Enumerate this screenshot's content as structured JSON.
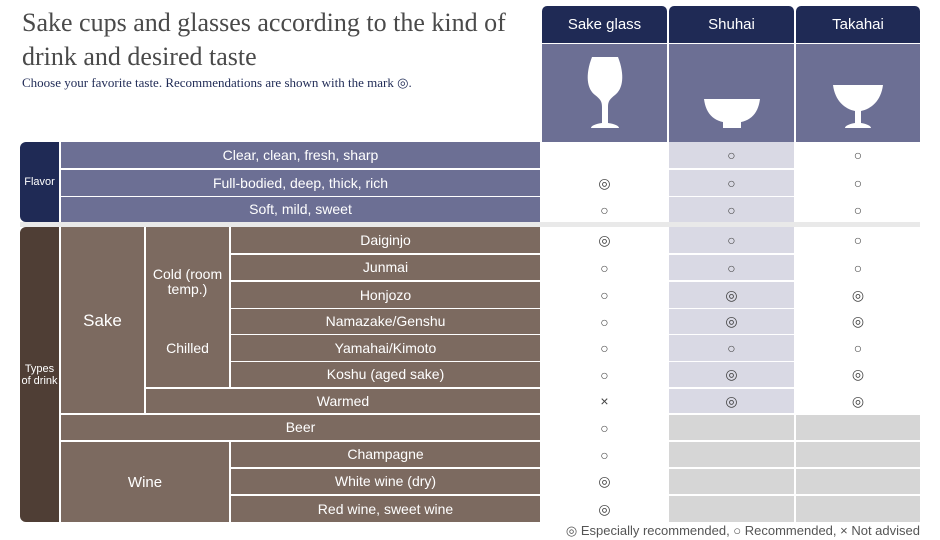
{
  "title": "Sake cups and glasses according to the kind of drink and desired taste",
  "subtitle": "Choose your favorite taste. Recommendations are shown with the mark ◎.",
  "columns": [
    {
      "label": "Sake glass",
      "icon": "sake-glass-icon"
    },
    {
      "label": "Shuhai",
      "icon": "shuhai-cup-icon"
    },
    {
      "label": "Takahai",
      "icon": "takahai-cup-icon"
    }
  ],
  "groups": {
    "flavor": "Flavor",
    "types": "Types of drink",
    "sake": "Sake",
    "cold": "Cold (room temp.)",
    "chilled": "Chilled",
    "wine": "Wine"
  },
  "rows": [
    {
      "label": "Clear, clean, fresh, sharp",
      "marks": [
        "",
        "○",
        "○"
      ]
    },
    {
      "label": "Full-bodied, deep, thick, rich",
      "marks": [
        "◎",
        "○",
        "○"
      ]
    },
    {
      "label": "Soft, mild, sweet",
      "marks": [
        "○",
        "○",
        "○"
      ]
    },
    {
      "label": "Daiginjo",
      "marks": [
        "◎",
        "○",
        "○"
      ]
    },
    {
      "label": "Junmai",
      "marks": [
        "○",
        "○",
        "○"
      ]
    },
    {
      "label": "Honjozo",
      "marks": [
        "○",
        "◎",
        "◎"
      ]
    },
    {
      "label": "Namazake/Genshu",
      "marks": [
        "○",
        "◎",
        "◎"
      ]
    },
    {
      "label": "Yamahai/Kimoto",
      "marks": [
        "○",
        "○",
        "○"
      ]
    },
    {
      "label": "Koshu (aged sake)",
      "marks": [
        "○",
        "◎",
        "◎"
      ]
    },
    {
      "label": "Warmed",
      "marks": [
        "×",
        "◎",
        "◎"
      ]
    },
    {
      "label": "Beer",
      "marks": [
        "○",
        "",
        ""
      ]
    },
    {
      "label": "Champagne",
      "marks": [
        "○",
        "",
        ""
      ]
    },
    {
      "label": "White wine (dry)",
      "marks": [
        "◎",
        "",
        ""
      ]
    },
    {
      "label": "Red wine, sweet wine",
      "marks": [
        "◎",
        "",
        ""
      ]
    }
  ],
  "legend": "◎ Especially recommended, ○ Recommended, × Not advised",
  "colors": {
    "navy": "#1f2a55",
    "lavender": "#6c6f94",
    "brown": "#7c6a60",
    "dark_brown": "#4f3e35"
  }
}
